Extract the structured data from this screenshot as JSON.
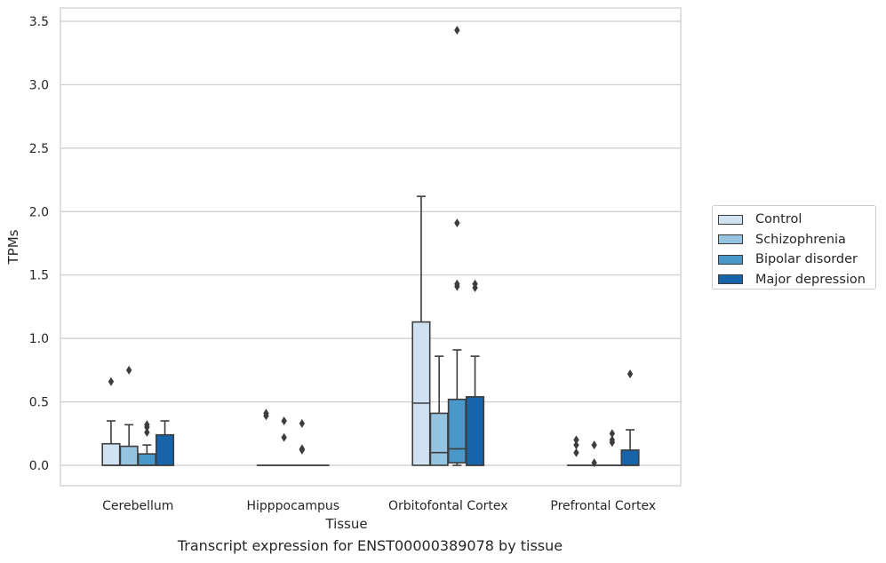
{
  "chart_data": {
    "type": "boxplot",
    "xlabel": "Tissue",
    "ylabel": "TPMs",
    "ylim": [
      -0.17,
      3.6
    ],
    "yticks": [
      "0.0",
      "0.5",
      "1.0",
      "1.5",
      "2.0",
      "2.5",
      "3.0",
      "3.5"
    ],
    "ytick_values": [
      0.0,
      0.5,
      1.0,
      1.5,
      2.0,
      2.5,
      3.0,
      3.5
    ],
    "grid": true,
    "legend_position": "right, outside plot",
    "categories": [
      "Cerebellum",
      "Hipppocampus",
      "Orbitofontal Cortex",
      "Prefrontal Cortex"
    ],
    "series": [
      {
        "name": "Control",
        "color": "#d0e1f2",
        "boxes": [
          {
            "whisker_low": 0,
            "q1": 0,
            "median": 0,
            "q3": 0.17,
            "whisker_high": 0.35,
            "outliers": [
              0.66
            ]
          },
          {
            "whisker_low": 0,
            "q1": 0,
            "median": 0,
            "q3": 0,
            "whisker_high": 0,
            "outliers": [
              0.39,
              0.41
            ]
          },
          {
            "whisker_low": 0,
            "q1": 0,
            "median": 0.49,
            "q3": 1.13,
            "whisker_high": 2.12,
            "outliers": []
          },
          {
            "whisker_low": 0,
            "q1": 0,
            "median": 0,
            "q3": 0,
            "whisker_high": 0,
            "outliers": [
              0.1,
              0.16,
              0.2
            ]
          }
        ]
      },
      {
        "name": "Schizophrenia",
        "color": "#94c4df",
        "boxes": [
          {
            "whisker_low": 0,
            "q1": 0,
            "median": 0,
            "q3": 0.15,
            "whisker_high": 0.32,
            "outliers": [
              0.75
            ]
          },
          {
            "whisker_low": 0,
            "q1": 0,
            "median": 0,
            "q3": 0,
            "whisker_high": 0,
            "outliers": [
              0.22,
              0.35
            ]
          },
          {
            "whisker_low": 0,
            "q1": 0,
            "median": 0.1,
            "q3": 0.41,
            "whisker_high": 0.86,
            "outliers": []
          },
          {
            "whisker_low": 0,
            "q1": 0,
            "median": 0,
            "q3": 0,
            "whisker_high": 0,
            "outliers": [
              0.02,
              0.16
            ]
          }
        ]
      },
      {
        "name": "Bipolar disorder",
        "color": "#4a98c9",
        "boxes": [
          {
            "whisker_low": 0,
            "q1": 0,
            "median": 0,
            "q3": 0.09,
            "whisker_high": 0.16,
            "outliers": [
              0.26,
              0.3,
              0.32
            ]
          },
          {
            "whisker_low": 0,
            "q1": 0,
            "median": 0,
            "q3": 0,
            "whisker_high": 0,
            "outliers": [
              0.12,
              0.13,
              0.33
            ]
          },
          {
            "whisker_low": 0,
            "q1": 0.02,
            "median": 0.13,
            "q3": 0.52,
            "whisker_high": 0.91,
            "outliers": [
              1.41,
              1.43,
              1.91,
              3.43
            ]
          },
          {
            "whisker_low": 0,
            "q1": 0,
            "median": 0,
            "q3": 0,
            "whisker_high": 0,
            "outliers": [
              0.18,
              0.2,
              0.25
            ]
          }
        ]
      },
      {
        "name": "Major depression",
        "color": "#1764ab",
        "boxes": [
          {
            "whisker_low": 0,
            "q1": 0,
            "median": 0,
            "q3": 0.24,
            "whisker_high": 0.35,
            "outliers": []
          },
          {
            "whisker_low": 0,
            "q1": 0,
            "median": 0,
            "q3": 0,
            "whisker_high": 0,
            "outliers": []
          },
          {
            "whisker_low": 0,
            "q1": 0,
            "median": 0,
            "q3": 0.54,
            "whisker_high": 0.86,
            "outliers": [
              1.4,
              1.43
            ]
          },
          {
            "whisker_low": 0,
            "q1": 0,
            "median": 0,
            "q3": 0.12,
            "whisker_high": 0.28,
            "outliers": [
              0.72
            ]
          }
        ]
      }
    ]
  },
  "caption": "Transcript expression for ENST00000389078 by tissue"
}
